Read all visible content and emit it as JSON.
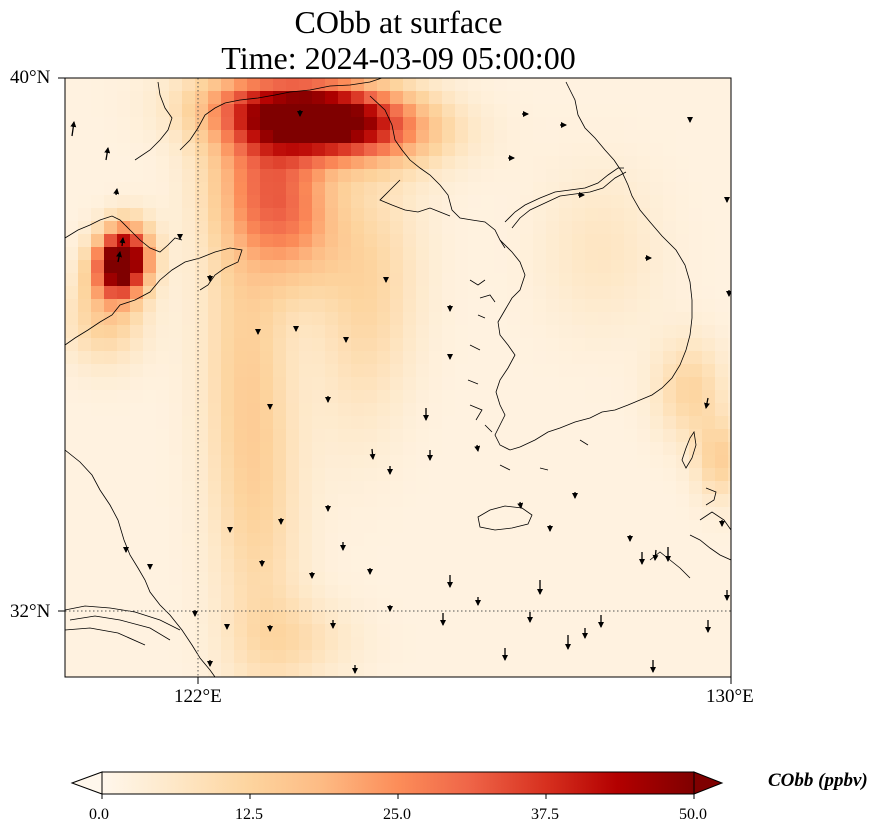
{
  "title": {
    "line1": "CObb at surface",
    "line2": "Time: 2024-03-09 05:00:00"
  },
  "map": {
    "projection": "PlateCarree",
    "extent": {
      "lon_min": 120,
      "lon_max": 130,
      "lat_min": 31,
      "lat_max": 40
    },
    "gridlines": {
      "style": "dotted",
      "lons": [
        122
      ],
      "lats": [
        32
      ]
    },
    "lon_ticks": [
      {
        "value": 122,
        "label": "122°E"
      },
      {
        "value": 130,
        "label": "130°E"
      }
    ],
    "lat_ticks": [
      {
        "value": 40,
        "label": "40°N"
      },
      {
        "value": 32,
        "label": "32°N"
      }
    ],
    "features": [
      "coastline",
      "wind-vectors",
      "filled-concentration-field"
    ],
    "hotspots": [
      {
        "name": "Liaodong Bay plume",
        "lon": 123.8,
        "lat": 39.7,
        "value": 50
      },
      {
        "name": "Shandong peninsula",
        "lon": 120.8,
        "lat": 37.3,
        "value": 50
      }
    ]
  },
  "colorbar": {
    "title": "CObb (ppbv)",
    "colormap": "OrRd",
    "min": 0.0,
    "max": 50.0,
    "extend": "both",
    "ticks": [
      "0.0",
      "12.5",
      "25.0",
      "37.5",
      "50.0"
    ],
    "colors": [
      "#fff7ec",
      "#fee8c8",
      "#fdd49e",
      "#fdbb84",
      "#fc8d59",
      "#ef6548",
      "#d7301f",
      "#b30000",
      "#7f0000"
    ]
  }
}
